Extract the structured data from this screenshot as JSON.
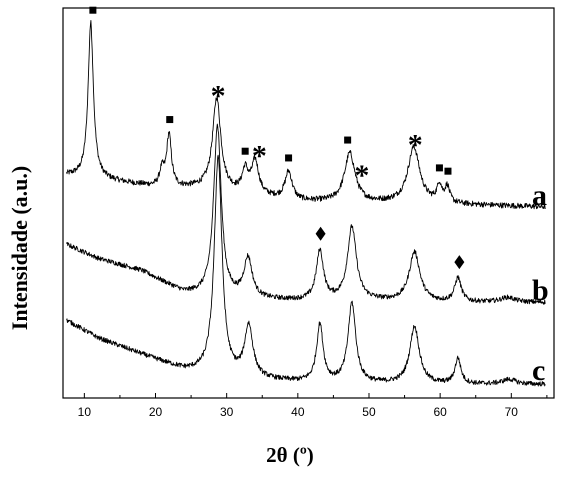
{
  "chart_data": {
    "type": "line",
    "xlabel": "2θ (º)",
    "ylabel": "Intensidade (a.u.)",
    "xlim": [
      7,
      76
    ],
    "x_ticks": [
      10,
      20,
      30,
      40,
      50,
      60,
      70
    ],
    "y_ticks_shown": false,
    "grid": false,
    "series": [
      {
        "name": "a",
        "offset": 2.2,
        "baseline": [
          [
            7,
            0.45
          ],
          [
            12,
            0.4
          ],
          [
            20,
            0.3
          ],
          [
            27,
            0.28
          ],
          [
            33,
            0.2
          ],
          [
            40,
            0.12
          ],
          [
            47,
            0.1
          ],
          [
            55,
            0.1
          ],
          [
            62,
            0.08
          ],
          [
            75,
            0.05
          ]
        ],
        "peaks": [
          {
            "x": 10.9,
            "h": 1.95,
            "w": 0.45
          },
          {
            "x": 20.9,
            "h": 0.2,
            "w": 0.4
          },
          {
            "x": 21.9,
            "h": 0.65,
            "w": 0.4
          },
          {
            "x": 28.6,
            "h": 1.15,
            "w": 0.7
          },
          {
            "x": 32.6,
            "h": 0.28,
            "w": 0.5
          },
          {
            "x": 34.0,
            "h": 0.42,
            "w": 0.6
          },
          {
            "x": 38.7,
            "h": 0.35,
            "w": 0.6
          },
          {
            "x": 47.3,
            "h": 0.62,
            "w": 0.9
          },
          {
            "x": 56.3,
            "h": 0.7,
            "w": 1.0
          },
          {
            "x": 59.9,
            "h": 0.22,
            "w": 0.4
          },
          {
            "x": 61.0,
            "h": 0.2,
            "w": 0.4
          }
        ],
        "noise": 0.035
      },
      {
        "name": "b",
        "offset": 1.05,
        "baseline": [
          [
            7,
            0.75
          ],
          [
            12,
            0.55
          ],
          [
            18,
            0.4
          ],
          [
            24,
            0.12
          ],
          [
            30,
            0.05
          ],
          [
            40,
            0.02
          ],
          [
            50,
            0.02
          ],
          [
            60,
            0.0
          ],
          [
            75,
            0.0
          ]
        ],
        "peaks": [
          {
            "x": 28.7,
            "h": 2.15,
            "w": 0.65
          },
          {
            "x": 33.0,
            "h": 0.5,
            "w": 0.7
          },
          {
            "x": 43.1,
            "h": 0.62,
            "w": 0.6
          },
          {
            "x": 47.6,
            "h": 0.92,
            "w": 0.75
          },
          {
            "x": 56.4,
            "h": 0.62,
            "w": 0.9
          },
          {
            "x": 62.5,
            "h": 0.3,
            "w": 0.55
          },
          {
            "x": 69.5,
            "h": 0.06,
            "w": 1.2
          }
        ],
        "noise": 0.03
      },
      {
        "name": "c",
        "offset": 0.0,
        "baseline": [
          [
            7,
            0.85
          ],
          [
            12,
            0.6
          ],
          [
            18,
            0.4
          ],
          [
            24,
            0.2
          ],
          [
            30,
            0.1
          ],
          [
            40,
            0.05
          ],
          [
            50,
            0.03
          ],
          [
            60,
            0.02
          ],
          [
            75,
            0.02
          ]
        ],
        "peaks": [
          {
            "x": 28.8,
            "h": 2.75,
            "w": 0.65
          },
          {
            "x": 33.1,
            "h": 0.65,
            "w": 0.7
          },
          {
            "x": 43.1,
            "h": 0.72,
            "w": 0.55
          },
          {
            "x": 47.6,
            "h": 1.0,
            "w": 0.65
          },
          {
            "x": 56.4,
            "h": 0.72,
            "w": 0.8
          },
          {
            "x": 62.5,
            "h": 0.32,
            "w": 0.5
          },
          {
            "x": 69.7,
            "h": 0.06,
            "w": 1.2
          }
        ],
        "noise": 0.03
      }
    ],
    "annotations": [
      {
        "symbol": "square",
        "x": 11.2,
        "series": "a"
      },
      {
        "symbol": "square",
        "x": 22.0,
        "series": "a"
      },
      {
        "symbol": "star",
        "x": 28.8,
        "series": "a"
      },
      {
        "symbol": "square",
        "x": 32.6,
        "series": "a"
      },
      {
        "symbol": "star",
        "x": 34.6,
        "series": "a"
      },
      {
        "symbol": "square",
        "x": 38.7,
        "series": "a"
      },
      {
        "symbol": "square",
        "x": 47.0,
        "series": "a"
      },
      {
        "symbol": "star",
        "x": 49.0,
        "series": "a"
      },
      {
        "symbol": "star",
        "x": 56.5,
        "series": "a"
      },
      {
        "symbol": "square",
        "x": 59.9,
        "series": "a"
      },
      {
        "symbol": "square",
        "x": 61.1,
        "series": "a"
      },
      {
        "symbol": "diamond",
        "x": 43.2,
        "series": "b"
      },
      {
        "symbol": "diamond",
        "x": 62.7,
        "series": "b"
      }
    ]
  }
}
